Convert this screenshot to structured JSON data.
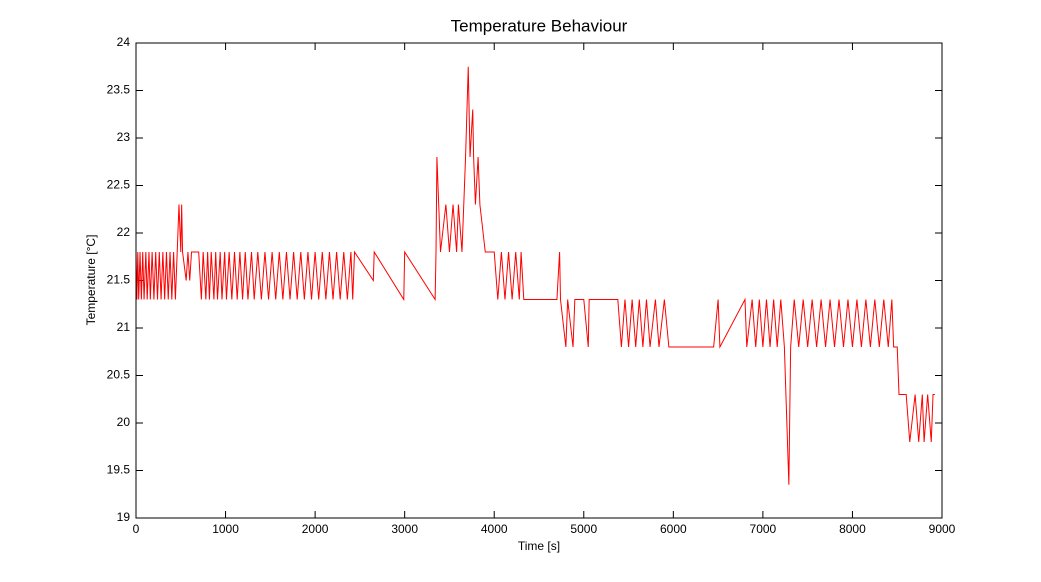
{
  "chart_data": {
    "type": "line",
    "title": "Temperature Behaviour",
    "xlabel": "Time [s]",
    "ylabel": "Temperature [°C]",
    "xlim": [
      0,
      9000
    ],
    "xticks": [
      0,
      1000,
      2000,
      3000,
      4000,
      5000,
      6000,
      7000,
      8000,
      9000
    ],
    "ylim": [
      19,
      24
    ],
    "yticks": [
      19,
      19.5,
      20,
      20.5,
      21,
      21.5,
      22,
      22.5,
      23,
      23.5,
      24
    ],
    "series": [
      {
        "color": "#ff0000",
        "x": [
          0,
          10,
          20,
          30,
          45,
          60,
          75,
          90,
          110,
          125,
          145,
          160,
          180,
          200,
          220,
          240,
          260,
          280,
          300,
          320,
          340,
          360,
          380,
          400,
          420,
          440,
          460,
          480,
          500,
          510,
          520,
          560,
          580,
          600,
          620,
          700,
          730,
          750,
          780,
          800,
          820,
          840,
          870,
          890,
          910,
          940,
          960,
          990,
          1010,
          1040,
          1070,
          1100,
          1130,
          1160,
          1190,
          1220,
          1250,
          1290,
          1320,
          1360,
          1400,
          1440,
          1480,
          1520,
          1560,
          1600,
          1640,
          1680,
          1720,
          1760,
          1800,
          1840,
          1880,
          1920,
          1960,
          2000,
          2040,
          2080,
          2120,
          2160,
          2200,
          2240,
          2280,
          2320,
          2360,
          2400,
          2420,
          2440,
          2650,
          2660,
          2990,
          3000,
          3340,
          3350,
          3360,
          3380,
          3400,
          3460,
          3500,
          3540,
          3580,
          3600,
          3640,
          3660,
          3680,
          3710,
          3730,
          3760,
          3770,
          3790,
          3820,
          3840,
          3900,
          3960,
          4000,
          4040,
          4080,
          4120,
          4160,
          4200,
          4240,
          4280,
          4300,
          4330,
          4700,
          4730,
          4740,
          4800,
          4820,
          4880,
          4900,
          5000,
          5050,
          5060,
          5380,
          5420,
          5460,
          5500,
          5540,
          5580,
          5620,
          5660,
          5700,
          5740,
          5800,
          5840,
          5900,
          5950,
          6450,
          6500,
          6520,
          6800,
          6820,
          6880,
          6920,
          6960,
          7000,
          7040,
          7080,
          7120,
          7160,
          7200,
          7240,
          7290,
          7300,
          7310,
          7350,
          7400,
          7450,
          7500,
          7550,
          7600,
          7650,
          7700,
          7750,
          7800,
          7850,
          7900,
          7950,
          8000,
          8050,
          8100,
          8150,
          8200,
          8250,
          8300,
          8350,
          8400,
          8440,
          8460,
          8500,
          8520,
          8560,
          8600,
          8640,
          8700,
          8740,
          8780,
          8800,
          8840,
          8880,
          8900,
          8920
        ],
        "values": [
          21.8,
          21.3,
          21.8,
          21.3,
          21.8,
          21.3,
          21.8,
          21.3,
          21.8,
          21.3,
          21.8,
          21.3,
          21.8,
          21.3,
          21.8,
          21.3,
          21.8,
          21.3,
          21.8,
          21.3,
          21.8,
          21.3,
          21.8,
          21.3,
          21.8,
          21.3,
          21.8,
          22.3,
          21.8,
          22.3,
          21.8,
          21.5,
          21.8,
          21.5,
          21.8,
          21.8,
          21.3,
          21.8,
          21.3,
          21.8,
          21.3,
          21.8,
          21.3,
          21.8,
          21.3,
          21.8,
          21.3,
          21.8,
          21.3,
          21.8,
          21.3,
          21.8,
          21.3,
          21.8,
          21.3,
          21.8,
          21.3,
          21.8,
          21.3,
          21.8,
          21.3,
          21.8,
          21.3,
          21.8,
          21.3,
          21.8,
          21.3,
          21.8,
          21.3,
          21.8,
          21.3,
          21.8,
          21.3,
          21.8,
          21.3,
          21.8,
          21.3,
          21.8,
          21.3,
          21.8,
          21.3,
          21.8,
          21.3,
          21.8,
          21.3,
          21.8,
          21.3,
          21.8,
          21.5,
          21.8,
          21.3,
          21.8,
          21.3,
          21.8,
          22.8,
          22.3,
          21.8,
          22.3,
          21.8,
          22.3,
          21.8,
          22.3,
          21.8,
          22.3,
          22.8,
          23.75,
          22.8,
          23.3,
          22.8,
          22.3,
          22.8,
          22.3,
          21.8,
          21.8,
          21.8,
          21.3,
          21.8,
          21.3,
          21.8,
          21.3,
          21.8,
          21.3,
          21.8,
          21.3,
          21.3,
          21.8,
          21.3,
          20.8,
          21.3,
          20.8,
          21.3,
          21.3,
          20.8,
          21.3,
          21.3,
          20.8,
          21.3,
          20.8,
          21.3,
          20.8,
          21.3,
          20.8,
          21.3,
          20.8,
          21.3,
          20.8,
          21.3,
          20.8,
          20.8,
          21.3,
          20.8,
          21.3,
          20.8,
          21.3,
          20.8,
          21.3,
          20.8,
          21.3,
          20.8,
          21.3,
          20.8,
          21.3,
          20.8,
          19.35,
          20.1,
          20.8,
          21.3,
          20.8,
          21.3,
          20.8,
          21.3,
          20.8,
          21.3,
          20.8,
          21.3,
          20.8,
          21.3,
          20.8,
          21.3,
          20.8,
          21.3,
          20.8,
          21.3,
          20.8,
          21.3,
          20.8,
          21.3,
          20.8,
          21.3,
          20.8,
          20.8,
          20.3,
          20.3,
          20.3,
          19.8,
          20.3,
          19.8,
          20.3,
          19.8,
          20.3,
          19.8,
          20.3,
          20.3
        ]
      }
    ]
  }
}
